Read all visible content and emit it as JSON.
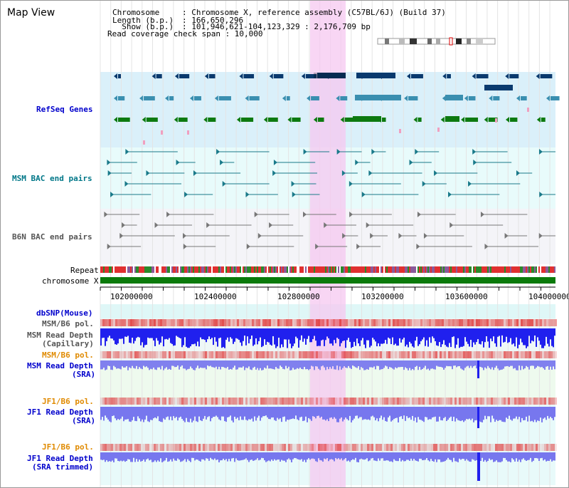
{
  "title": "Map View",
  "info": {
    "chromosome_label": "Chromosome",
    "chromosome_value": ": Chromosome X, reference assembly (C57BL/6J) (Build 37)",
    "length_label": "Length (b.p.)",
    "length_value": ": 166,650,296",
    "show_label": "  Show (b.p.)",
    "show_value": ": 101,946,621-104,123,329 : 2,176,709 bp",
    "coverage_text": "Read coverage check span : 10,000"
  },
  "tracks": {
    "refseq": "RefSeq Genes",
    "msm_bac": "MSM BAC end pairs",
    "b6n_bac": "B6N BAC end pairs",
    "repeat": "Repeat",
    "chromosome": "chromosome X",
    "dbsnp": "dbSNP(Mouse)",
    "msm_b6_pol_1": "MSM/B6 pol.",
    "msm_read_depth_cap_1": "MSM Read Depth",
    "msm_read_depth_cap_2": "(Capillary)",
    "msm_b6_pol_2": "MSM/B6 pol.",
    "msm_read_depth_sra_1": "MSM Read Depth",
    "msm_read_depth_sra_2": "(SRA)",
    "jf1_b6_pol_1": "JF1/B6 pol.",
    "jf1_read_depth_sra_1": "JF1 Read Depth",
    "jf1_read_depth_sra_2": "(SRA)",
    "jf1_b6_pol_2": "JF1/B6 pol.",
    "jf1_read_depth_trim_1": "JF1 Read Depth",
    "jf1_read_depth_trim_2": "(SRA trimmed)"
  },
  "axis": {
    "ticks": [
      "102000000",
      "102400000",
      "102800000",
      "103200000",
      "103600000",
      "104000000"
    ]
  },
  "colors": {
    "refseq_bg": "#daf0fa",
    "bac_bg": "#e8fbfb",
    "b6n_bg": "#f4f4f8",
    "highlight": "#f5c8f0",
    "gene_navy": "#0a3a6e",
    "gene_teal": "#3a8fb0",
    "gene_green": "#0d7a10",
    "pol_red": "#e03030",
    "depth_blue": "#2020ee",
    "depth_light": "#7777ee",
    "chrom_green": "#0a7a0a"
  }
}
